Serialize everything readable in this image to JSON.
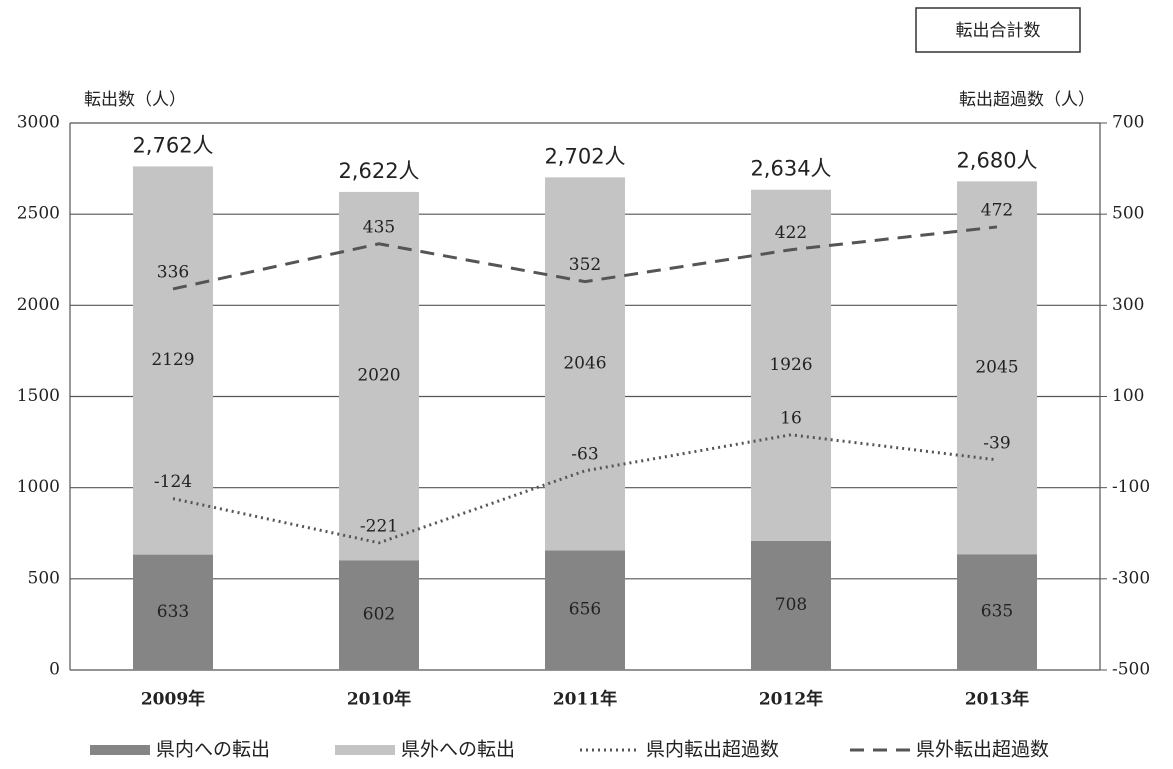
{
  "chart_data": {
    "type": "bar",
    "badge": "転出合計数",
    "ylabel": "転出数（人）",
    "y2label": "転出超過数（人）",
    "categories": [
      "2009年",
      "2010年",
      "2011年",
      "2012年",
      "2013年"
    ],
    "series": [
      {
        "name": "県内への転出",
        "color": "#858585",
        "values": [
          633,
          602,
          656,
          708,
          635
        ]
      },
      {
        "name": "県外への転出",
        "color": "#c4c4c4",
        "values": [
          2129,
          2020,
          2046,
          1926,
          2045
        ]
      },
      {
        "name": "県内転出超過数",
        "color": "#555555",
        "axis": "y2",
        "type": "line",
        "style": "dotted",
        "values": [
          -124,
          -221,
          -63,
          16,
          -39
        ]
      },
      {
        "name": "県外転出超過数",
        "color": "#555555",
        "axis": "y2",
        "type": "line",
        "style": "dashed",
        "values": [
          336,
          435,
          352,
          422,
          472
        ]
      }
    ],
    "totals": {
      "values": [
        2762,
        2622,
        2702,
        2634,
        2680
      ],
      "value_labels": [
        "2,762人",
        "2,622人",
        "2,702人",
        "2,634人",
        "2,680人"
      ]
    },
    "ylim": [
      0,
      3000
    ],
    "yticks": [
      0,
      500,
      1000,
      1500,
      2000,
      2500,
      3000
    ],
    "y2lim": [
      -500,
      700
    ],
    "y2ticks": [
      -500,
      -300,
      -100,
      100,
      300,
      500,
      700
    ],
    "grid": true,
    "legend": "bottom"
  }
}
